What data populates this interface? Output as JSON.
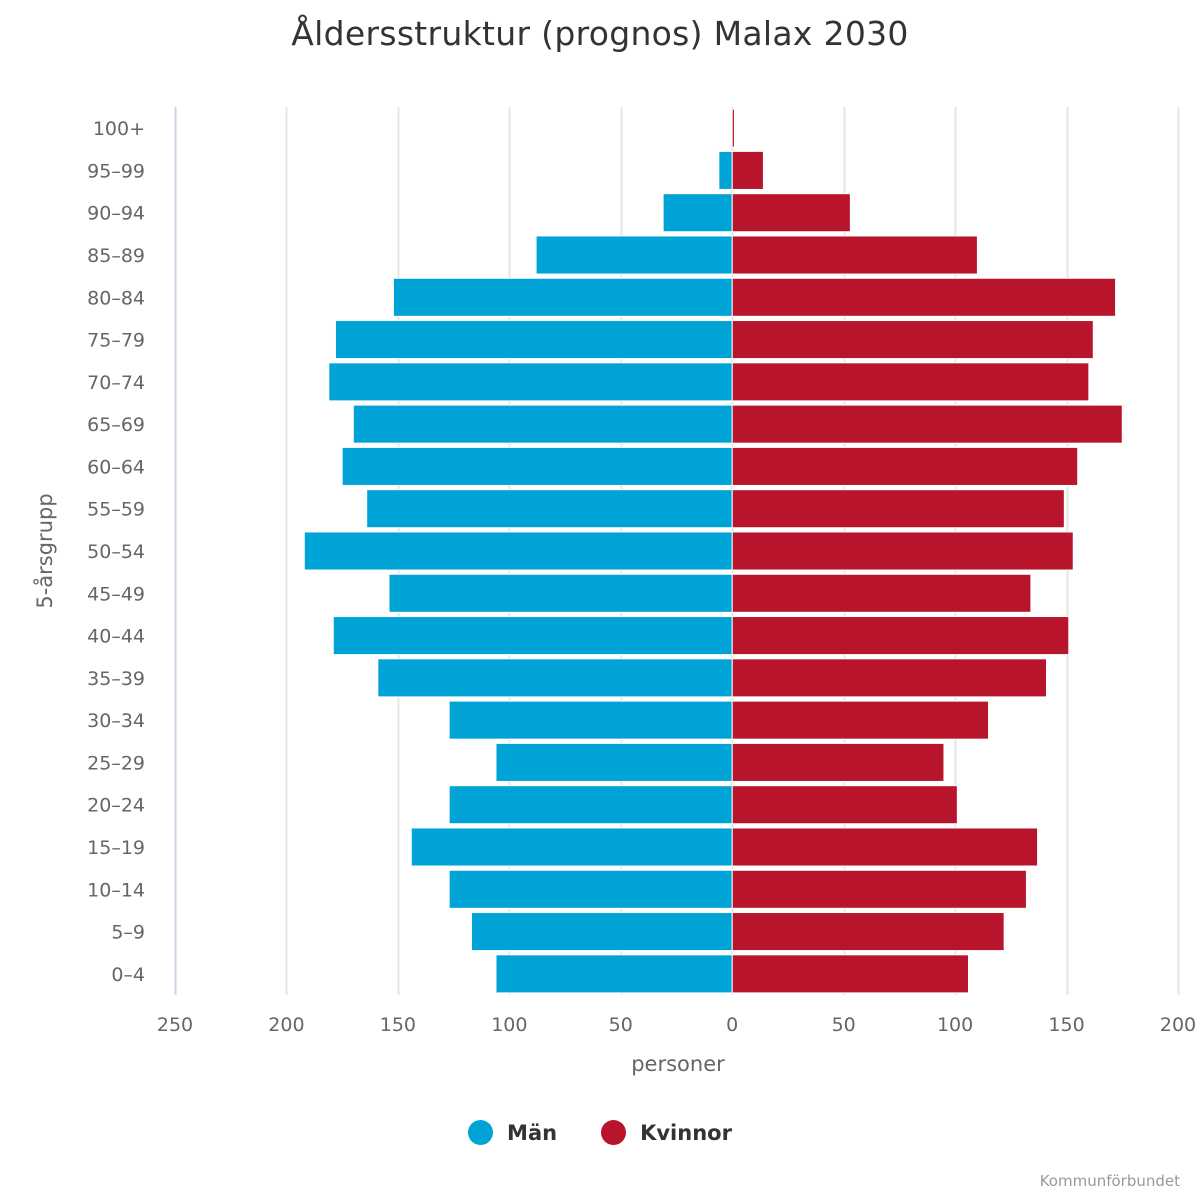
{
  "chart_data": {
    "type": "bar",
    "orientation": "horizontal",
    "layout": "population-pyramid",
    "title": "Åldersstruktur (prognos) Malax 2030",
    "xlabel": "personer",
    "ylabel": "5-årsgrupp",
    "xlim": [
      -250,
      200
    ],
    "x_ticks": [
      -250,
      -200,
      -150,
      -100,
      -50,
      0,
      50,
      100,
      150,
      200
    ],
    "x_tick_labels": [
      "250",
      "200",
      "150",
      "100",
      "50",
      "0",
      "50",
      "100",
      "150",
      "200"
    ],
    "grid": true,
    "legend_position": "bottom",
    "categories": [
      "100+",
      "95-99",
      "90-94",
      "85-89",
      "80-84",
      "75-79",
      "70-74",
      "65-69",
      "60-64",
      "55-59",
      "50-54",
      "45-49",
      "40-44",
      "35-39",
      "30-34",
      "25-29",
      "20-24",
      "15-19",
      "10-14",
      "5-9",
      "0-4"
    ],
    "series": [
      {
        "name": "Män",
        "color": "#00a3d6",
        "side": "left",
        "values": [
          0,
          6,
          31,
          88,
          152,
          178,
          181,
          170,
          175,
          164,
          192,
          154,
          179,
          159,
          127,
          106,
          127,
          144,
          127,
          117,
          106
        ]
      },
      {
        "name": "Kvinnor",
        "color": "#b8142b",
        "side": "right",
        "values": [
          1,
          14,
          53,
          110,
          172,
          162,
          160,
          175,
          155,
          149,
          153,
          134,
          151,
          141,
          115,
          95,
          101,
          137,
          132,
          122,
          106
        ]
      }
    ]
  },
  "legend": {
    "items": [
      {
        "label": "Män",
        "color": "#00a3d6"
      },
      {
        "label": "Kvinnor",
        "color": "#b8142b"
      }
    ]
  },
  "credits": "Kommunförbundet"
}
